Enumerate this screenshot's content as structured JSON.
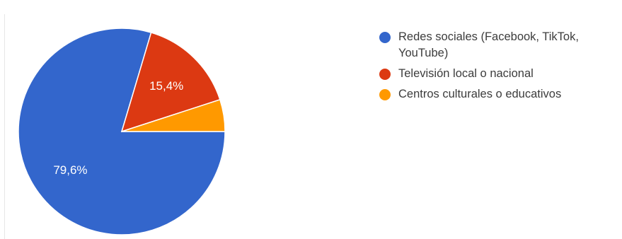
{
  "chart_data": {
    "type": "pie",
    "title": "",
    "categories": [
      "Redes sociales (Facebook, TikTok, YouTube)",
      "Televisión local o nacional",
      "Centros culturales o educativos"
    ],
    "values": [
      79.6,
      15.4,
      5.0
    ],
    "data_labels": [
      "79,6%",
      "15,4%",
      ""
    ],
    "colors": [
      "#3366cc",
      "#dc3912",
      "#ff9900"
    ],
    "legend_position": "right"
  }
}
